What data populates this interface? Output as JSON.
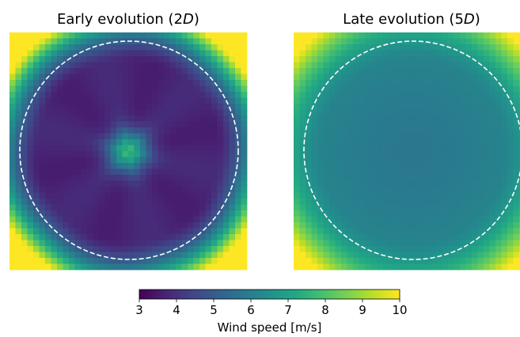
{
  "chart_data": {
    "type": "heatmap",
    "panels": [
      {
        "title_prefix": "Early evolution (2",
        "title_italic": "D",
        "title_suffix": ")",
        "description": "Low wind speed (~3.5-4.5 m/s) ring inside the dashed circle, central peak ~7.5 m/s, corners reach ~10 m/s",
        "center_value": 7.6,
        "ring_value": 3.7,
        "edge_value": 9.4,
        "corner_value": 10.0
      },
      {
        "title_prefix": "Late evolution (5",
        "title_italic": "D",
        "title_suffix": ")",
        "description": "Smooth field ~5.8-6.5 m/s inside the circle, rising to ~8.5-9.5 m/s at corners",
        "center_value": 5.8,
        "ring_value": 6.3,
        "edge_value": 8.2,
        "corner_value": 9.3
      }
    ],
    "colorbar": {
      "colormap": "viridis",
      "vmin": 3,
      "vmax": 10,
      "ticks": [
        "3",
        "4",
        "5",
        "6",
        "7",
        "8",
        "9",
        "10"
      ],
      "label": "Wind speed [m/s]"
    },
    "overlay": "dashed white circle (rotor disk)",
    "grid_cells": 40
  }
}
